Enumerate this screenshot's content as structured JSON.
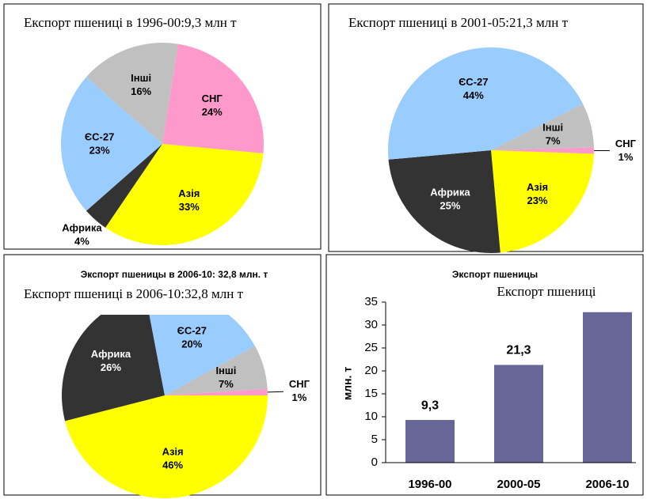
{
  "chart_data": [
    {
      "type": "pie",
      "title": "Експорт пшениці в 1996-00:9,3 млн т",
      "categories": [
        "СНГ",
        "Азія",
        "Африка",
        "ЄС-27",
        "Інші"
      ],
      "values": [
        24,
        33,
        4,
        23,
        16
      ],
      "value_labels": [
        "24%",
        "33%",
        "4%",
        "23%",
        "16%"
      ],
      "colors": [
        "#ff99cc",
        "#ffff00",
        "#333333",
        "#99ccff",
        "#c0c0c0"
      ]
    },
    {
      "type": "pie",
      "title": "Експорт пшениці в 2001-05:21,3 млн т",
      "categories": [
        "Азія",
        "Африка",
        "ЄС-27",
        "Інші",
        "СНГ"
      ],
      "values": [
        23,
        25,
        44,
        7,
        1
      ],
      "value_labels": [
        "23%",
        "25%",
        "44%",
        "7%",
        "1%"
      ],
      "colors": [
        "#ffff00",
        "#333333",
        "#99ccff",
        "#c0c0c0",
        "#ff99cc"
      ]
    },
    {
      "type": "pie",
      "title": "Експорт пшениці в 2006-10:32,8 млн т",
      "underlying_title": "Экспорт пшеницы в 2006-10: 32,8 млн. т",
      "categories": [
        "Азія",
        "Африка",
        "ЄС-27",
        "Інші",
        "СНГ"
      ],
      "values": [
        46,
        26,
        20,
        7,
        1
      ],
      "value_labels": [
        "46%",
        "26%",
        "20%",
        "7%",
        "1%"
      ],
      "colors": [
        "#ffff00",
        "#333333",
        "#99ccff",
        "#c0c0c0",
        "#ff99cc"
      ]
    },
    {
      "type": "bar",
      "title": "Експорт пшениці",
      "underlying_title": "Экспорт пшеницы",
      "y_label": "млн. т",
      "categories": [
        "1996-00",
        "2000-05",
        "2006-10"
      ],
      "values": [
        9.3,
        21.3,
        32.8
      ],
      "value_labels": [
        "9,3",
        "21,3",
        null
      ],
      "color": "#666699",
      "ylim": [
        0,
        35
      ],
      "yticks": [
        0,
        5,
        10,
        15,
        20,
        25,
        30,
        35
      ]
    }
  ]
}
